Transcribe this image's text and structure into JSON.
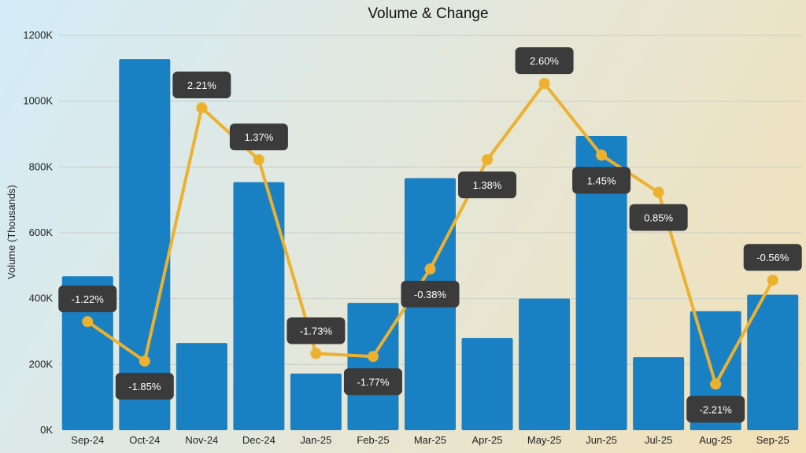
{
  "chart_data": {
    "type": "bar+line",
    "title": "Volume & Change",
    "ylabel": "Volume (Thousands)",
    "xlabel": "",
    "ylim": [
      0,
      1200
    ],
    "y_ticks": [
      "0K",
      "200K",
      "400K",
      "600K",
      "800K",
      "1000K",
      "1200K"
    ],
    "grid": "horizontal",
    "categories": [
      "Sep-24",
      "Oct-24",
      "Nov-24",
      "Dec-24",
      "Jan-25",
      "Feb-25",
      "Mar-25",
      "Apr-25",
      "May-25",
      "Jun-25",
      "Jul-25",
      "Aug-25",
      "Sep-25"
    ],
    "bar_values": [
      468,
      1128,
      265,
      754,
      172,
      387,
      766,
      280,
      400,
      894,
      222,
      362,
      412
    ],
    "line_values": [
      330,
      210,
      980,
      822,
      233,
      224,
      490,
      822,
      1054,
      836,
      723,
      140,
      456
    ],
    "change_labels": [
      "-1.22%",
      "-1.85%",
      "2.21%",
      "1.37%",
      "-1.73%",
      "-1.77%",
      "-0.38%",
      "1.38%",
      "2.60%",
      "1.45%",
      "0.85%",
      "-2.21%",
      "-0.56%"
    ],
    "colors": {
      "bar": "#1a80c4",
      "line": "#ecb12e",
      "callout": "#3b3b3b"
    }
  }
}
